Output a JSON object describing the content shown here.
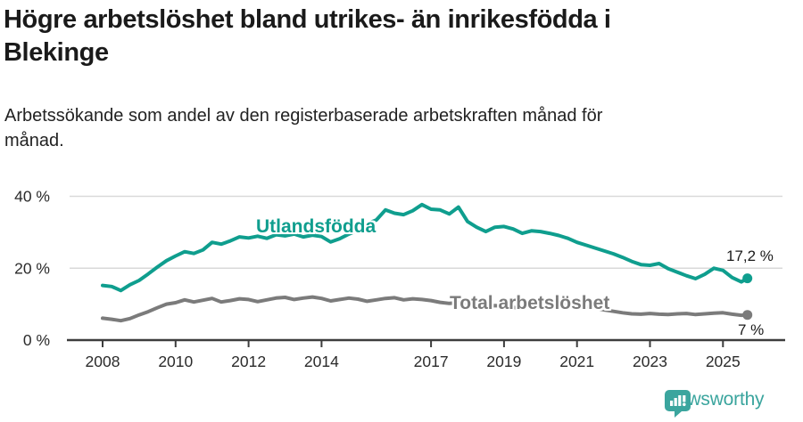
{
  "header": {
    "title_line1": "Högre arbetslöshet bland utrikes- än inrikesfödda i",
    "title_line2": "Blekinge",
    "subtitle_line1": "Arbetssökande som andel av den registerbaserade arbetskraften månad för",
    "subtitle_line2": "månad."
  },
  "chart_data": {
    "type": "line",
    "title": "Högre arbetslöshet bland utrikes- än inrikesfödda i Blekinge",
    "subtitle": "Arbetssökande som andel av den registerbaserade arbetskraften månad för månad.",
    "xlabel": "",
    "ylabel": "",
    "ylim": [
      0,
      44
    ],
    "xlim": [
      2008,
      2025.75
    ],
    "grid": "horizontal",
    "legend_position": "inline-labels",
    "y_ticks": [
      {
        "value": 0,
        "label": "0 %"
      },
      {
        "value": 20,
        "label": "20 %"
      },
      {
        "value": 40,
        "label": "40 %"
      }
    ],
    "x_ticks": [
      2008,
      2010,
      2012,
      2014,
      2017,
      2019,
      2021,
      2023,
      2025
    ],
    "x": [
      2008.0,
      2008.25,
      2008.5,
      2008.75,
      2009.0,
      2009.25,
      2009.5,
      2009.75,
      2010.0,
      2010.25,
      2010.5,
      2010.75,
      2011.0,
      2011.25,
      2011.5,
      2011.75,
      2012.0,
      2012.25,
      2012.5,
      2012.75,
      2013.0,
      2013.25,
      2013.5,
      2013.75,
      2014.0,
      2014.25,
      2014.5,
      2014.75,
      2015.0,
      2015.25,
      2015.5,
      2015.75,
      2016.0,
      2016.25,
      2016.5,
      2016.75,
      2017.0,
      2017.25,
      2017.5,
      2017.75,
      2018.0,
      2018.25,
      2018.5,
      2018.75,
      2019.0,
      2019.25,
      2019.5,
      2019.75,
      2020.0,
      2020.25,
      2020.5,
      2020.75,
      2021.0,
      2021.25,
      2021.5,
      2021.75,
      2022.0,
      2022.25,
      2022.5,
      2022.75,
      2023.0,
      2023.25,
      2023.5,
      2023.75,
      2024.0,
      2024.25,
      2024.5,
      2024.75,
      2025.0,
      2025.25,
      2025.5,
      2025.67
    ],
    "series": [
      {
        "id": "utlandsfodda",
        "name": "Utlandsfödda",
        "color": "#0f9e8e",
        "end_label": "17,2 %",
        "end_value": 17.2,
        "values": [
          15.2,
          14.9,
          13.8,
          15.4,
          16.6,
          18.4,
          20.3,
          22.1,
          23.4,
          24.6,
          24.1,
          25.1,
          27.2,
          26.7,
          27.6,
          28.7,
          28.4,
          28.9,
          28.3,
          29.3,
          29.0,
          29.5,
          28.7,
          29.2,
          28.8,
          27.3,
          28.2,
          29.5,
          30.6,
          32.4,
          33.4,
          36.2,
          35.3,
          34.9,
          36.0,
          37.7,
          36.4,
          36.2,
          35.1,
          37.0,
          33.0,
          31.4,
          30.2,
          31.4,
          31.6,
          30.9,
          29.7,
          30.4,
          30.2,
          29.7,
          29.1,
          28.3,
          27.2,
          26.4,
          25.6,
          24.8,
          24.0,
          23.0,
          21.9,
          21.0,
          20.8,
          21.3,
          19.9,
          18.9,
          17.9,
          17.1,
          18.3,
          20.0,
          19.4,
          17.4,
          16.2,
          17.2
        ]
      },
      {
        "id": "total",
        "name": "Total arbetslöshet",
        "color": "#7b7b7b",
        "end_label": "7 %",
        "end_value": 7.0,
        "values": [
          6.1,
          5.8,
          5.4,
          6.0,
          7.0,
          7.9,
          9.0,
          10.0,
          10.4,
          11.2,
          10.6,
          11.1,
          11.6,
          10.6,
          11.0,
          11.5,
          11.3,
          10.7,
          11.2,
          11.7,
          11.9,
          11.3,
          11.7,
          12.0,
          11.6,
          10.9,
          11.3,
          11.7,
          11.4,
          10.8,
          11.2,
          11.6,
          11.8,
          11.2,
          11.5,
          11.3,
          11.0,
          10.5,
          10.2,
          10.4,
          10.1,
          9.7,
          9.4,
          9.6,
          9.4,
          9.1,
          8.9,
          9.2,
          9.6,
          10.4,
          10.6,
          10.2,
          9.9,
          9.4,
          8.9,
          8.4,
          8.0,
          7.6,
          7.3,
          7.2,
          7.4,
          7.2,
          7.1,
          7.3,
          7.4,
          7.1,
          7.3,
          7.5,
          7.6,
          7.2,
          6.9,
          7.0
        ]
      }
    ],
    "colors": {
      "accent_teal": "#0f9e8e",
      "gray": "#7b7b7b",
      "gridline": "#d9d9d9",
      "axis": "#3d3d3d"
    }
  },
  "footer": {
    "brand": "Newsworthy",
    "brand_color": "#3ba59e"
  }
}
